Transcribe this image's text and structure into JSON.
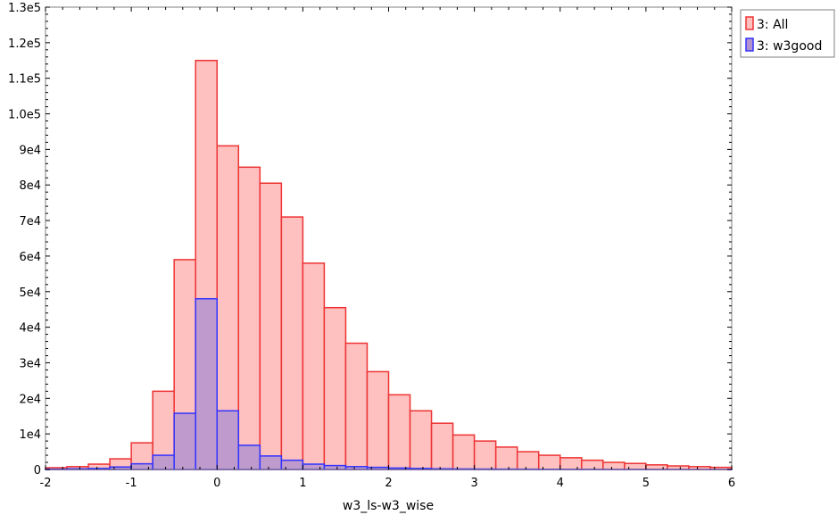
{
  "chart_data": {
    "type": "bar",
    "xlabel": "w3_ls-w3_wise",
    "ylabel": "",
    "xlim": [
      -2,
      6
    ],
    "ylim": [
      0,
      130000
    ],
    "bin_width": 0.25,
    "bin_start": -2,
    "x_ticks": [
      {
        "value": -2,
        "label": "-2"
      },
      {
        "value": -1,
        "label": "-1"
      },
      {
        "value": 0,
        "label": "0"
      },
      {
        "value": 1,
        "label": "1"
      },
      {
        "value": 2,
        "label": "2"
      },
      {
        "value": 3,
        "label": "3"
      },
      {
        "value": 4,
        "label": "4"
      },
      {
        "value": 5,
        "label": "5"
      },
      {
        "value": 6,
        "label": "6"
      }
    ],
    "y_ticks": [
      {
        "value": 0,
        "label": "0"
      },
      {
        "value": 10000,
        "label": "1e4"
      },
      {
        "value": 20000,
        "label": "2e4"
      },
      {
        "value": 30000,
        "label": "3e4"
      },
      {
        "value": 40000,
        "label": "4e4"
      },
      {
        "value": 50000,
        "label": "5e4"
      },
      {
        "value": 60000,
        "label": "6e4"
      },
      {
        "value": 70000,
        "label": "7e4"
      },
      {
        "value": 80000,
        "label": "8e4"
      },
      {
        "value": 90000,
        "label": "9e4"
      },
      {
        "value": 100000,
        "label": "1.0e5"
      },
      {
        "value": 110000,
        "label": "1.1e5"
      },
      {
        "value": 120000,
        "label": "1.2e5"
      },
      {
        "value": 130000,
        "label": "1.3e5"
      }
    ],
    "legend_position": "top-right",
    "series": [
      {
        "name": "3: All",
        "fill": "#ffc0c0",
        "stroke": "#ee3333",
        "values": [
          500,
          800,
          1500,
          3000,
          7500,
          22000,
          59000,
          115000,
          91000,
          85000,
          80500,
          71000,
          58000,
          45500,
          35500,
          27500,
          21000,
          16500,
          13000,
          9700,
          8000,
          6300,
          5000,
          4000,
          3300,
          2600,
          2000,
          1700,
          1300,
          1000,
          800,
          600
        ]
      },
      {
        "name": "3: w3good",
        "fill": "#b393cf",
        "stroke": "#3333ff",
        "values": [
          100,
          200,
          300,
          700,
          1600,
          4000,
          15800,
          48000,
          16500,
          6800,
          3800,
          2600,
          1500,
          1100,
          800,
          600,
          400,
          300,
          200,
          150,
          120,
          100,
          80,
          60,
          50,
          40,
          30,
          30,
          20,
          20,
          10,
          10
        ]
      }
    ]
  }
}
